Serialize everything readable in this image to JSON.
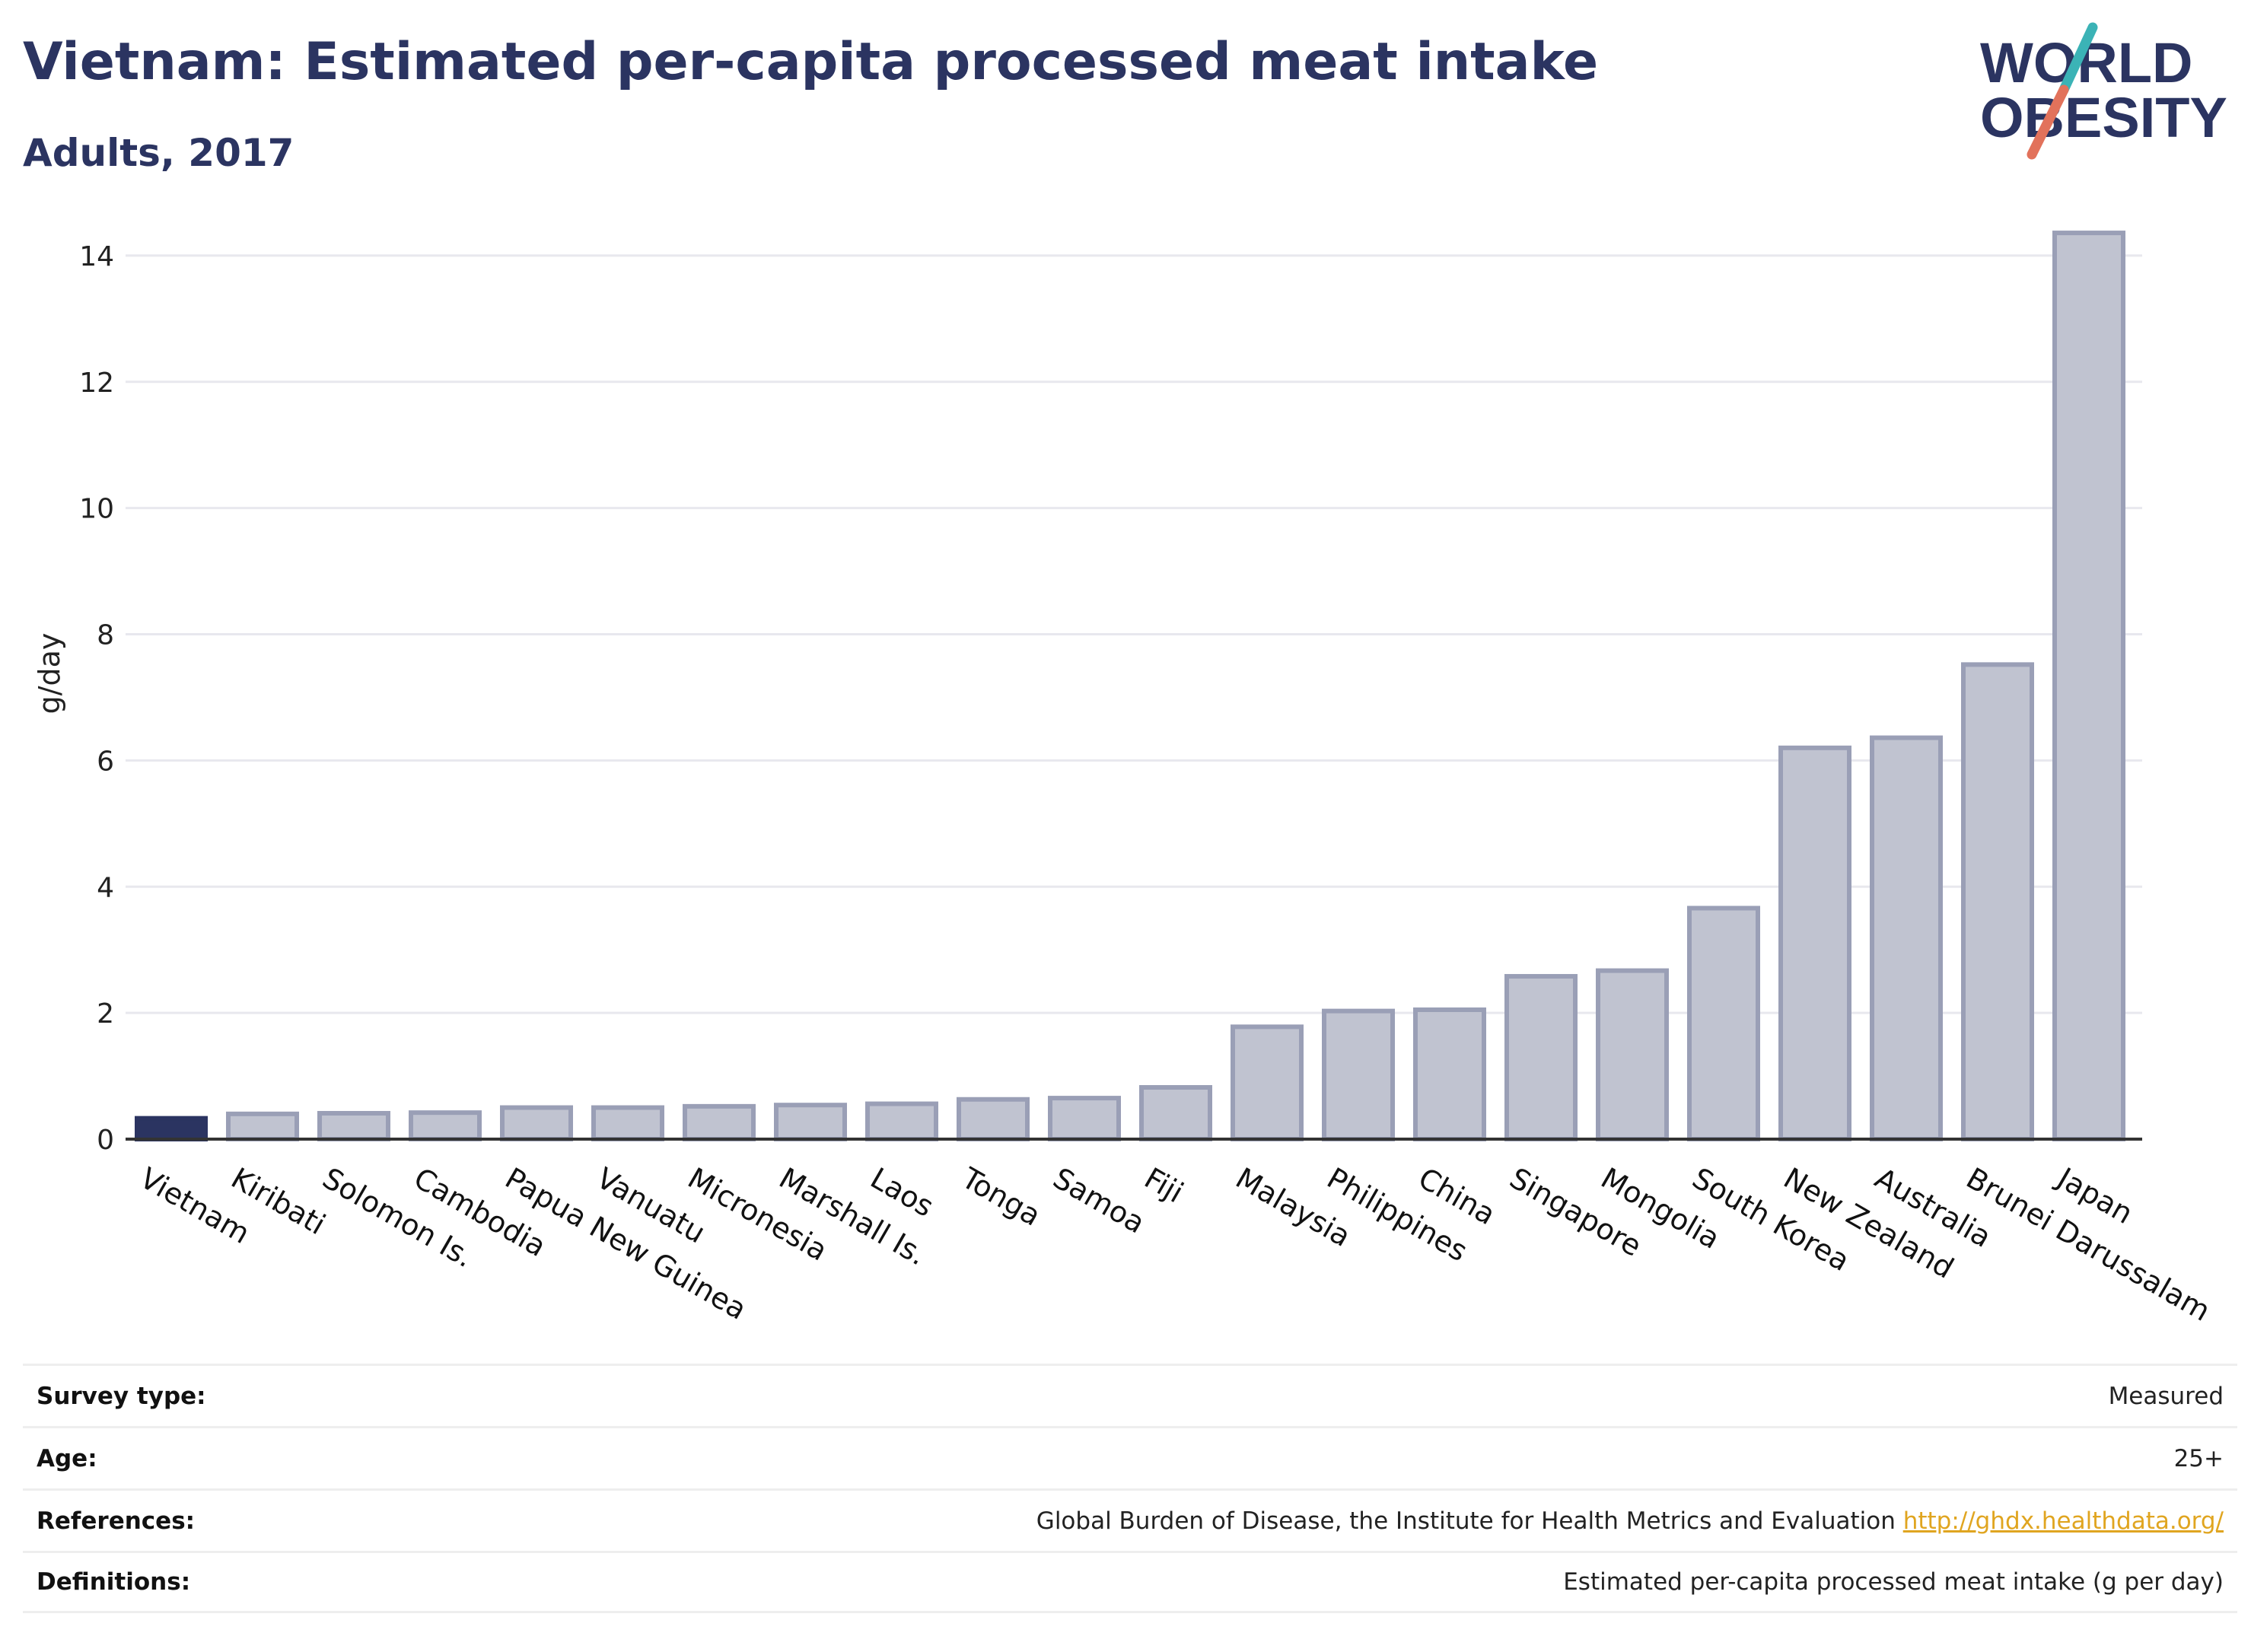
{
  "header": {
    "title": "Vietnam: Estimated per-capita processed meat intake",
    "subtitle": "Adults, 2017"
  },
  "logo": {
    "line1": "WORLD",
    "line2": "OBESITY",
    "colors": {
      "text": "#2b3461",
      "slash_top": "#3bb3b6",
      "slash_bottom": "#e2725b"
    }
  },
  "chart_data": {
    "type": "bar",
    "ylabel": "g/day",
    "ylim": [
      0,
      15
    ],
    "yticks": [
      0,
      2,
      4,
      6,
      8,
      10,
      12,
      14
    ],
    "grid": true,
    "highlight": "Vietnam",
    "colors": {
      "highlight": "#2b3461",
      "bar": "#c0c3d0",
      "bar_edge": "#9a9fb6",
      "grid": "#e8e8ee"
    },
    "categories": [
      "Vietnam",
      "Kiribati",
      "Solomon Is.",
      "Cambodia",
      "Papua New Guinea",
      "Vanuatu",
      "Micronesia",
      "Marshall Is.",
      "Laos",
      "Tonga",
      "Samoa",
      "Fiji",
      "Malaysia",
      "Philippines",
      "China",
      "Singapore",
      "Mongolia",
      "South Korea",
      "New Zealand",
      "Australia",
      "Brunei Darussalam",
      "Japan"
    ],
    "values": [
      0.33,
      0.4,
      0.41,
      0.42,
      0.5,
      0.5,
      0.52,
      0.54,
      0.56,
      0.63,
      0.65,
      0.82,
      1.78,
      2.03,
      2.05,
      2.58,
      2.67,
      3.66,
      6.2,
      6.36,
      7.52,
      14.36
    ]
  },
  "meta": {
    "rows": [
      {
        "label": "Survey type:",
        "value": "Measured"
      },
      {
        "label": "Age:",
        "value": "25+"
      },
      {
        "label": "References:",
        "value": "Global Burden of Disease, the Institute for Health Metrics and Evaluation",
        "link": "http://ghdx.healthdata.org/"
      },
      {
        "label": "Definitions:",
        "value": "Estimated per-capita processed meat intake (g per day)"
      }
    ]
  }
}
